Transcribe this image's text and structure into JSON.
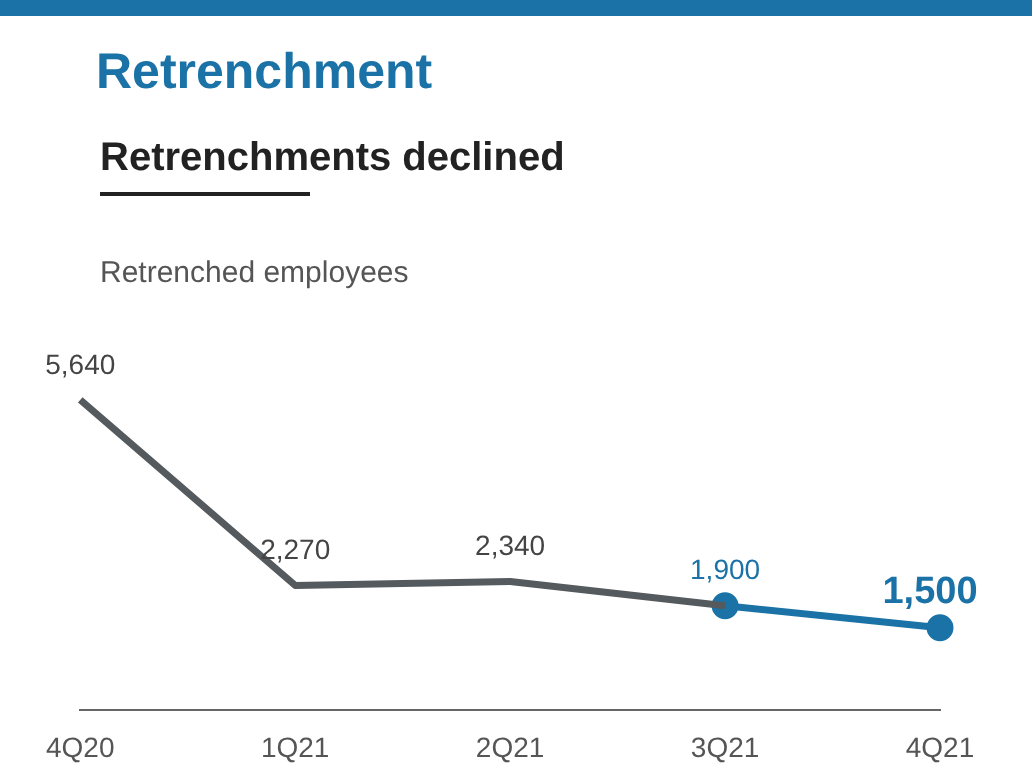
{
  "chart_data": {
    "type": "line",
    "title": "Retrenchment",
    "subtitle": "Retrenchments declined",
    "ylabel": "Retrenched employees",
    "categories": [
      "4Q20",
      "1Q21",
      "2Q21",
      "3Q21",
      "4Q21"
    ],
    "series": [
      {
        "color": "#555a5e",
        "values": [
          5640,
          2270,
          2340,
          1900,
          null
        ],
        "value_labels": [
          "5,640",
          "2,270",
          "2,340",
          null,
          null
        ],
        "marker": "none"
      },
      {
        "color": "#1a72a6",
        "values": [
          null,
          null,
          null,
          1900,
          1500
        ],
        "value_labels": [
          null,
          null,
          null,
          "1,900",
          "1,500"
        ],
        "marker": "circle"
      }
    ],
    "grid": false,
    "legend": false
  }
}
